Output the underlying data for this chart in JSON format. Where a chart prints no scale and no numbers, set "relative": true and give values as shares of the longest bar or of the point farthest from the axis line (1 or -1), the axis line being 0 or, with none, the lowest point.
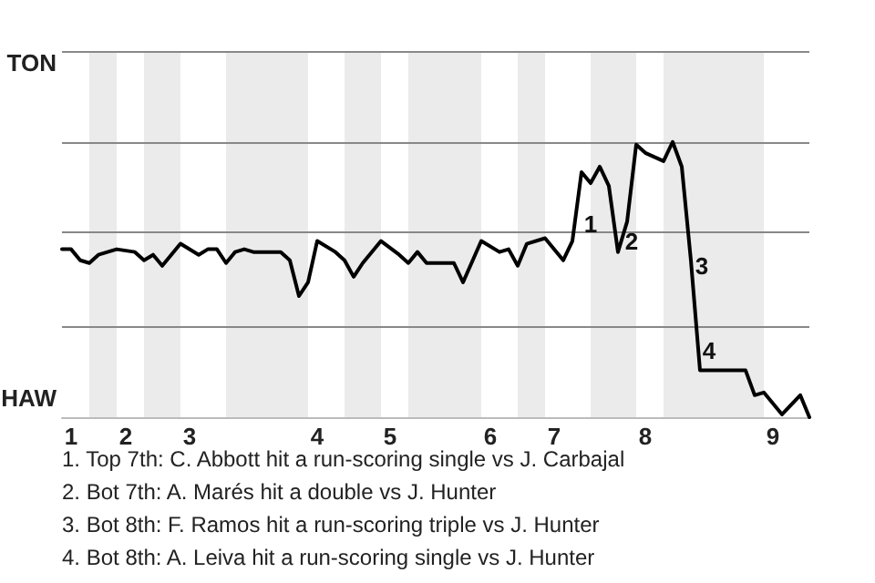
{
  "chart_data": {
    "type": "line",
    "categories": [
      null,
      "1",
      null,
      null,
      null,
      null,
      null,
      "2",
      null,
      null,
      null,
      null,
      null,
      null,
      "3",
      null,
      null,
      null,
      null,
      null,
      null,
      null,
      null,
      null,
      null,
      null,
      null,
      null,
      "4",
      null,
      null,
      null,
      null,
      null,
      null,
      null,
      "5",
      null,
      null,
      null,
      null,
      null,
      null,
      null,
      null,
      null,
      null,
      "6",
      null,
      null,
      null,
      null,
      null,
      null,
      "7",
      null,
      null,
      null,
      null,
      null,
      null,
      null,
      null,
      null,
      "8",
      null,
      null,
      null,
      null,
      null,
      null,
      null,
      null,
      null,
      null,
      null,
      null,
      null,
      "9",
      null,
      null,
      null,
      null
    ],
    "relative": true,
    "series": [
      {
        "color": "#000000",
        "values": [
          0.61,
          0.61,
          0.57,
          0.56,
          0.59,
          null,
          0.61,
          null,
          0.6,
          0.57,
          0.59,
          0.55,
          null,
          0.63,
          null,
          0.59,
          0.61,
          0.61,
          0.56,
          0.6,
          0.61,
          0.6,
          null,
          null,
          0.6,
          0.57,
          0.44,
          0.49,
          0.64,
          null,
          0.6,
          0.57,
          0.51,
          0.56,
          null,
          0.64,
          null,
          0.59,
          0.56,
          0.6,
          0.56,
          null,
          null,
          0.56,
          0.49,
          null,
          0.64,
          null,
          0.6,
          0.61,
          0.55,
          0.63,
          null,
          0.65,
          null,
          0.57,
          0.64,
          0.89,
          0.85,
          0.91,
          0.84,
          0.6,
          0.71,
          0.99,
          0.96,
          null,
          0.93,
          1,
          0.91,
          0.57,
          0.17,
          null,
          null,
          null,
          null,
          0.17,
          0.08,
          0.09,
          null,
          0.01,
          null,
          0.08,
          0
        ]
      }
    ],
    "ref_lines": [
      {
        "axis": "y",
        "value": 0.33,
        "color": "#888888"
      },
      {
        "axis": "y",
        "value": 0.67,
        "color": "#888888"
      },
      {
        "axis": "y",
        "value": 1,
        "color": "#888888"
      },
      {
        "axis": "y",
        "value": 1.33,
        "color": "#888888"
      }
    ],
    "annotations": [
      "TON",
      "HAW",
      {
        "text": "1",
        "y": 0.7
      },
      {
        "text": "2",
        "y": 0.64
      },
      {
        "text": "3",
        "y": 0.55
      },
      {
        "text": "4",
        "y": 0.24
      },
      "1. Top 7th: C. Abbott hit a run-scoring single vs J. Carbajal",
      "2. Bot 7th: A. Marés hit a double vs J. Hunter",
      "3. Bot 8th: F. Ramos hit a run-scoring triple vs J. Hunter",
      "4. Bot 8th: A. Leiva hit a run-scoring single vs J. Hunter"
    ],
    "marker": "none"
  }
}
